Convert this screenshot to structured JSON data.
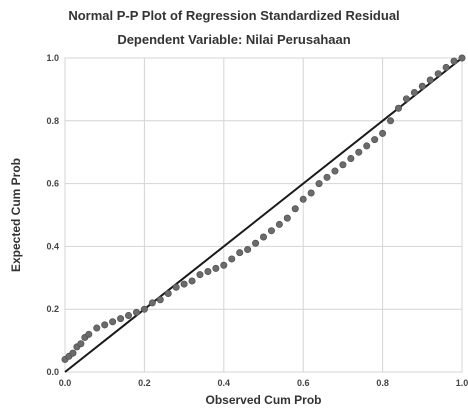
{
  "chart_data": {
    "type": "scatter",
    "title": "Normal P-P Plot of Regression Standardized Residual",
    "subtitle": "Dependent Variable: Nilai Perusahaan",
    "xlabel": "Observed Cum Prob",
    "ylabel": "Expected Cum Prob",
    "xlim": [
      0,
      1
    ],
    "ylim": [
      0,
      1
    ],
    "x_ticks": [
      "0.0",
      "0.2",
      "0.4",
      "0.6",
      "0.8",
      "1.0"
    ],
    "y_ticks": [
      "0.0",
      "0.2",
      "0.4",
      "0.6",
      "0.8",
      "1.0"
    ],
    "grid": true,
    "reference_line": [
      [
        0,
        0
      ],
      [
        1,
        1
      ]
    ],
    "series": [
      {
        "x": [
          0.0,
          0.01,
          0.02,
          0.03,
          0.04,
          0.05,
          0.06,
          0.08,
          0.1,
          0.12,
          0.14,
          0.16,
          0.18,
          0.2,
          0.22,
          0.24,
          0.26,
          0.28,
          0.3,
          0.32,
          0.34,
          0.36,
          0.38,
          0.4,
          0.42,
          0.44,
          0.46,
          0.48,
          0.5,
          0.52,
          0.54,
          0.56,
          0.58,
          0.6,
          0.62,
          0.64,
          0.66,
          0.68,
          0.7,
          0.72,
          0.74,
          0.76,
          0.78,
          0.8,
          0.82,
          0.84,
          0.86,
          0.88,
          0.9,
          0.92,
          0.94,
          0.96,
          0.98,
          1.0
        ],
        "y": [
          0.04,
          0.05,
          0.06,
          0.08,
          0.09,
          0.11,
          0.12,
          0.14,
          0.15,
          0.16,
          0.17,
          0.18,
          0.19,
          0.2,
          0.22,
          0.23,
          0.25,
          0.27,
          0.28,
          0.29,
          0.31,
          0.32,
          0.33,
          0.34,
          0.36,
          0.38,
          0.39,
          0.41,
          0.43,
          0.45,
          0.47,
          0.49,
          0.52,
          0.55,
          0.57,
          0.6,
          0.62,
          0.64,
          0.66,
          0.68,
          0.7,
          0.72,
          0.74,
          0.76,
          0.8,
          0.84,
          0.87,
          0.89,
          0.91,
          0.93,
          0.95,
          0.97,
          0.99,
          1.0
        ]
      }
    ]
  }
}
